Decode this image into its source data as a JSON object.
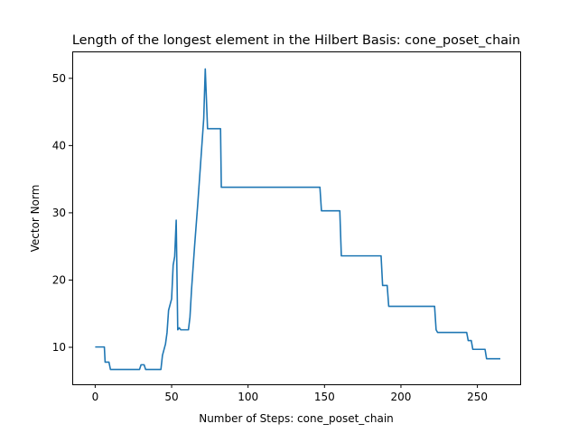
{
  "chart_data": {
    "type": "line",
    "title": "Length of the longest element in the Hilbert Basis: cone_poset_chain",
    "xlabel": "Number of Steps: cone_poset_chain",
    "ylabel": "Vector Norm",
    "xlim": [
      -15,
      278
    ],
    "ylim": [
      4.5,
      54
    ],
    "xticks": [
      0,
      50,
      100,
      150,
      200,
      250
    ],
    "yticks": [
      10,
      20,
      30,
      40,
      50
    ],
    "grid": false,
    "series": [
      {
        "color": "#1f77b4",
        "points": [
          [
            0,
            10.05
          ],
          [
            6,
            10.05
          ],
          [
            6.5,
            7.8
          ],
          [
            9,
            7.8
          ],
          [
            10,
            6.7
          ],
          [
            29,
            6.7
          ],
          [
            30,
            7.4
          ],
          [
            32,
            7.4
          ],
          [
            33,
            6.7
          ],
          [
            43,
            6.7
          ],
          [
            44,
            8.8
          ],
          [
            46,
            10.5
          ],
          [
            47,
            12.2
          ],
          [
            48,
            15.5
          ],
          [
            50,
            17.2
          ],
          [
            51,
            22.2
          ],
          [
            52,
            23.5
          ],
          [
            53,
            28.9
          ],
          [
            54,
            12.6
          ],
          [
            55,
            12.9
          ],
          [
            56,
            12.6
          ],
          [
            61,
            12.6
          ],
          [
            62,
            14.5
          ],
          [
            63,
            18.5
          ],
          [
            65,
            25.0
          ],
          [
            67,
            31.0
          ],
          [
            69,
            37.5
          ],
          [
            71,
            44.0
          ],
          [
            72,
            51.4
          ],
          [
            73.5,
            42.5
          ],
          [
            82,
            42.5
          ],
          [
            82.5,
            33.8
          ],
          [
            147,
            33.8
          ],
          [
            148,
            30.3
          ],
          [
            160,
            30.3
          ],
          [
            161,
            23.6
          ],
          [
            187,
            23.6
          ],
          [
            188,
            19.2
          ],
          [
            191,
            19.2
          ],
          [
            192,
            16.1
          ],
          [
            222,
            16.1
          ],
          [
            223,
            12.6
          ],
          [
            224,
            12.2
          ],
          [
            243,
            12.2
          ],
          [
            244,
            11.0
          ],
          [
            246,
            11.0
          ],
          [
            247,
            9.7
          ],
          [
            255,
            9.7
          ],
          [
            256,
            8.3
          ],
          [
            265,
            8.3
          ]
        ]
      }
    ]
  }
}
